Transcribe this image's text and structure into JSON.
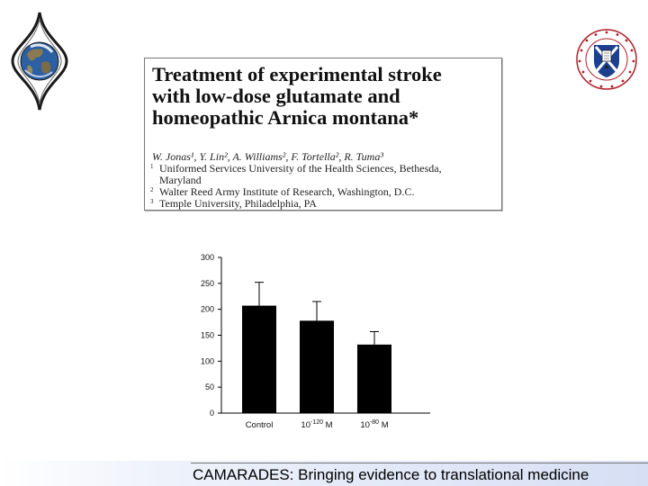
{
  "paper": {
    "title": "Treatment of experimental stroke\nwith low-dose glutamate and\nhomeopathic Arnica montana*",
    "authors": "W. Jonas¹, Y. Lin², A. Williams², F. Tortella², R. Tuma³",
    "affiliations": [
      {
        "num": "1",
        "text": "Uniformed Services University of the Health Sciences, Bethesda,"
      },
      {
        "num": "",
        "text": "Maryland"
      },
      {
        "num": "2",
        "text": "Walter Reed Army Institute of Research, Washington, D.C."
      },
      {
        "num": "3",
        "text": "Temple University, Philadelphia, PA"
      }
    ]
  },
  "chart_data": {
    "type": "bar",
    "categories": [
      "Control",
      "10-120 M",
      "10-80 M"
    ],
    "category_display": [
      {
        "base": "Control",
        "exp": "",
        "unit": ""
      },
      {
        "base": "10",
        "exp": "-120",
        "unit": " M"
      },
      {
        "base": "10",
        "exp": "-80",
        "unit": " M"
      }
    ],
    "values": [
      207,
      178,
      132
    ],
    "errors_upper": [
      252,
      215,
      157
    ],
    "ylim": [
      0,
      300
    ],
    "yticks": [
      0,
      50,
      100,
      150,
      200,
      250,
      300
    ],
    "title": "",
    "xlabel": "",
    "ylabel": "",
    "bar_color": "#000000",
    "grid": false,
    "legend": false
  },
  "footer": {
    "text": "CAMARADES: Bringing evidence to translational medicine"
  }
}
